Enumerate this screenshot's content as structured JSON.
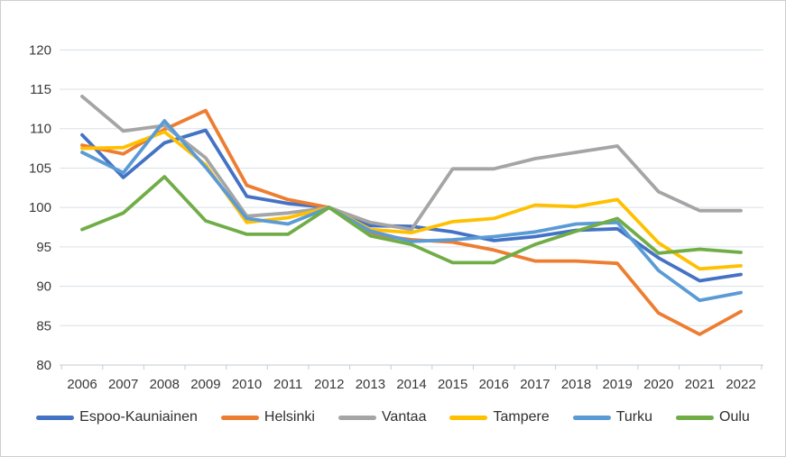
{
  "chart_data": {
    "type": "line",
    "categories": [
      "2006",
      "2007",
      "2008",
      "2009",
      "2010",
      "2011",
      "2012",
      "2013",
      "2014",
      "2015",
      "2016",
      "2017",
      "2018",
      "2019",
      "2020",
      "2021",
      "2022"
    ],
    "series": [
      {
        "name": "Espoo-Kauniainen",
        "color": "#4472C4",
        "values": [
          109.2,
          103.8,
          108.2,
          109.8,
          101.4,
          100.5,
          100.0,
          97.7,
          97.6,
          96.9,
          95.8,
          96.3,
          97.1,
          97.3,
          93.6,
          90.7,
          91.5
        ]
      },
      {
        "name": "Helsinki",
        "color": "#ED7D31",
        "values": [
          107.9,
          106.8,
          109.9,
          112.3,
          102.8,
          101.0,
          100.0,
          96.6,
          95.9,
          95.6,
          94.6,
          93.2,
          93.2,
          92.9,
          86.6,
          83.9,
          86.8
        ]
      },
      {
        "name": "Vantaa",
        "color": "#A5A5A5",
        "values": [
          114.1,
          109.7,
          110.4,
          106.3,
          98.9,
          99.3,
          100.0,
          98.1,
          97.2,
          104.9,
          104.9,
          106.2,
          107.0,
          107.8,
          102.0,
          99.6,
          99.6
        ]
      },
      {
        "name": "Tampere",
        "color": "#FFC000",
        "values": [
          107.5,
          107.6,
          109.6,
          105.4,
          98.1,
          98.7,
          100.0,
          97.2,
          96.8,
          98.2,
          98.6,
          100.3,
          100.1,
          101.0,
          95.5,
          92.2,
          92.6
        ]
      },
      {
        "name": "Turku",
        "color": "#5B9BD5",
        "values": [
          107.0,
          104.4,
          111.0,
          105.1,
          98.6,
          97.9,
          100.0,
          97.0,
          95.7,
          95.9,
          96.3,
          96.9,
          97.9,
          98.1,
          92.0,
          88.2,
          89.2
        ]
      },
      {
        "name": "Oulu",
        "color": "#70AD47",
        "values": [
          97.2,
          99.3,
          103.9,
          98.3,
          96.6,
          96.6,
          100.0,
          96.4,
          95.3,
          93.0,
          93.0,
          95.3,
          97.0,
          98.6,
          94.2,
          94.7,
          94.3
        ]
      }
    ],
    "title": "",
    "xlabel": "",
    "ylabel": "",
    "ylim": [
      80,
      120
    ],
    "ytick_step": 5,
    "grid": "horizontal",
    "legend_position": "bottom",
    "gridline_color": "#dadfe6",
    "axis_tick_color": "#c6cbd2",
    "axis_text_color": "#383838"
  }
}
